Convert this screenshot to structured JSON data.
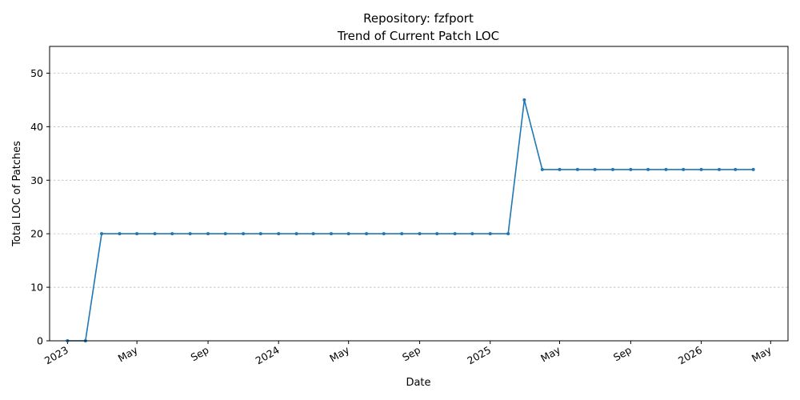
{
  "chart_data": {
    "type": "line",
    "title_line1": "Repository: fzfport",
    "title_line2": "Trend of Current Patch LOC",
    "xlabel": "Date",
    "ylabel": "Total LOC of Patches",
    "ylim": [
      0,
      55
    ],
    "yticks": [
      0,
      10,
      20,
      30,
      40,
      50
    ],
    "xlim": [
      "2022-12-01",
      "2026-05-31"
    ],
    "xticks": [
      {
        "date": "2023-01-01",
        "label": "2023"
      },
      {
        "date": "2023-05-01",
        "label": "May"
      },
      {
        "date": "2023-09-01",
        "label": "Sep"
      },
      {
        "date": "2024-01-01",
        "label": "2024"
      },
      {
        "date": "2024-05-01",
        "label": "May"
      },
      {
        "date": "2024-09-01",
        "label": "Sep"
      },
      {
        "date": "2025-01-01",
        "label": "2025"
      },
      {
        "date": "2025-05-01",
        "label": "May"
      },
      {
        "date": "2025-09-01",
        "label": "Sep"
      },
      {
        "date": "2026-01-01",
        "label": "2026"
      },
      {
        "date": "2026-05-01",
        "label": "May"
      }
    ],
    "grid": "y-dashed",
    "color": "#1f77b4",
    "series": [
      {
        "x": [
          "2023-01-01",
          "2023-02-01",
          "2023-03-01",
          "2023-04-01",
          "2023-05-01",
          "2023-06-01",
          "2023-07-01",
          "2023-08-01",
          "2023-09-01",
          "2023-10-01",
          "2023-11-01",
          "2023-12-01",
          "2024-01-01",
          "2024-02-01",
          "2024-03-01",
          "2024-04-01",
          "2024-05-01",
          "2024-06-01",
          "2024-07-01",
          "2024-08-01",
          "2024-09-01",
          "2024-10-01",
          "2024-11-01",
          "2024-12-01",
          "2025-01-01",
          "2025-02-01",
          "2025-03-01",
          "2025-04-01",
          "2025-05-01",
          "2025-06-01",
          "2025-07-01",
          "2025-08-01",
          "2025-09-01",
          "2025-10-01",
          "2025-11-01",
          "2025-12-01",
          "2026-01-01",
          "2026-02-01",
          "2026-03-01",
          "2026-04-01"
        ],
        "values": [
          0,
          0,
          20,
          20,
          20,
          20,
          20,
          20,
          20,
          20,
          20,
          20,
          20,
          20,
          20,
          20,
          20,
          20,
          20,
          20,
          20,
          20,
          20,
          20,
          20,
          20,
          45,
          32,
          32,
          32,
          32,
          32,
          32,
          32,
          32,
          32,
          32,
          32,
          32,
          32
        ]
      }
    ]
  }
}
